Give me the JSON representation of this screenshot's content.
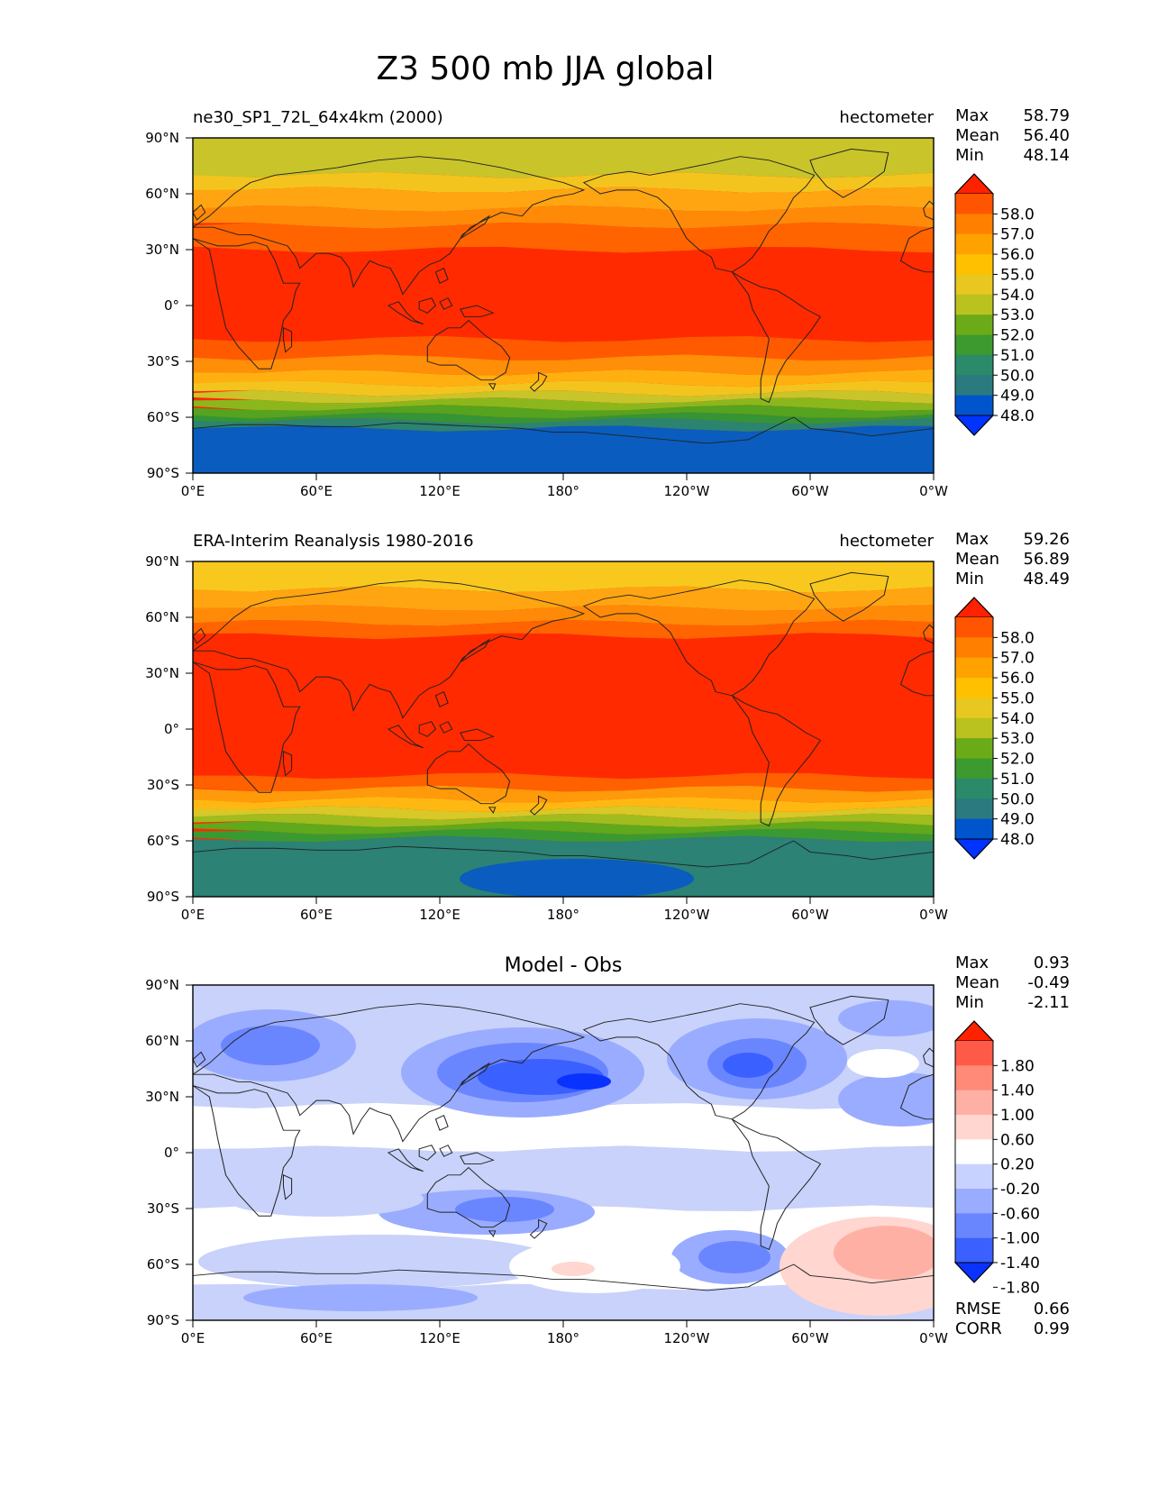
{
  "figure": {
    "title": "Z3 500 mb JJA global"
  },
  "axes": {
    "lat_ticks": [
      "90°N",
      "60°N",
      "30°N",
      "0°",
      "30°S",
      "60°S",
      "90°S"
    ],
    "lon_ticks": [
      "0°E",
      "60°E",
      "120°E",
      "180°",
      "120°W",
      "60°W",
      "0°W"
    ]
  },
  "panels": [
    {
      "id": "model",
      "left_title": "ne30_SP1_72L_64x4km (2000)",
      "right_title": "hectometer",
      "center_title": "",
      "stats": [
        {
          "label": "Max",
          "value": "58.79"
        },
        {
          "label": "Mean",
          "value": "56.40"
        },
        {
          "label": "Min",
          "value": "48.14"
        }
      ],
      "colorbar": {
        "labels": [
          "58.0",
          "57.0",
          "56.0",
          "55.0",
          "54.0",
          "53.0",
          "52.0",
          "51.0",
          "50.0",
          "49.0",
          "48.0"
        ],
        "colors": [
          "#ff2200",
          "#ff5500",
          "#ff8000",
          "#ffa200",
          "#ffc000",
          "#e8c820",
          "#b9c21f",
          "#6cab18",
          "#3c9a2e",
          "#2a8a6a",
          "#2a7a80",
          "#0055cc",
          "#0033ff"
        ]
      },
      "field": {
        "background": "#ff2a00",
        "lat_bands": [
          {
            "lat_top": 90,
            "lat_bottom": 70,
            "color": "#c8c42a"
          },
          {
            "lat_top": 70,
            "lat_bottom": 62,
            "color": "#f4c41e"
          },
          {
            "lat_top": 62,
            "lat_bottom": 52,
            "color": "#ffa512"
          },
          {
            "lat_top": 52,
            "lat_bottom": 43,
            "color": "#ff8a08"
          },
          {
            "lat_top": 43,
            "lat_bottom": 30,
            "color": "#ff6400"
          },
          {
            "lat_top": 30,
            "lat_bottom": -18,
            "color": "#ff2a00"
          },
          {
            "lat_top": -18,
            "lat_bottom": -28,
            "color": "#ff5a00"
          },
          {
            "lat_top": -28,
            "lat_bottom": -36,
            "color": "#ff8e08"
          },
          {
            "lat_top": -36,
            "lat_bottom": -42,
            "color": "#ffb010"
          },
          {
            "lat_top": -42,
            "lat_bottom": -47,
            "color": "#f4c41e"
          },
          {
            "lat_top": -47,
            "lat_bottom": -51,
            "color": "#c8c42a"
          },
          {
            "lat_top": -51,
            "lat_bottom": -55,
            "color": "#8cb71c"
          },
          {
            "lat_top": -55,
            "lat_bottom": -59,
            "color": "#55a31f"
          },
          {
            "lat_top": -59,
            "lat_bottom": -62,
            "color": "#349436"
          },
          {
            "lat_top": -62,
            "lat_bottom": -66,
            "color": "#2a8470"
          },
          {
            "lat_top": -66,
            "lat_bottom": -90,
            "color": "#0a5cbe"
          }
        ]
      }
    },
    {
      "id": "obs",
      "left_title": "ERA-Interim Reanalysis 1980-2016",
      "right_title": "hectometer",
      "center_title": "",
      "stats": [
        {
          "label": "Max",
          "value": "59.26"
        },
        {
          "label": "Mean",
          "value": "56.89"
        },
        {
          "label": "Min",
          "value": "48.49"
        }
      ],
      "colorbar": {
        "labels": [
          "58.0",
          "57.0",
          "56.0",
          "55.0",
          "54.0",
          "53.0",
          "52.0",
          "51.0",
          "50.0",
          "49.0",
          "48.0"
        ],
        "colors": [
          "#ff2200",
          "#ff5500",
          "#ff8000",
          "#ffa200",
          "#ffc000",
          "#e8c820",
          "#b9c21f",
          "#6cab18",
          "#3c9a2e",
          "#2a8a6a",
          "#2a7a80",
          "#0055cc",
          "#0033ff"
        ]
      },
      "field": {
        "background": "#ff2a00",
        "lat_bands": [
          {
            "lat_top": 90,
            "lat_bottom": 75,
            "color": "#f8c81e"
          },
          {
            "lat_top": 75,
            "lat_bottom": 65,
            "color": "#ffa512"
          },
          {
            "lat_top": 65,
            "lat_bottom": 57,
            "color": "#ff8a08"
          },
          {
            "lat_top": 57,
            "lat_bottom": 50,
            "color": "#ff6400"
          },
          {
            "lat_top": 50,
            "lat_bottom": -25,
            "color": "#ff2a00"
          },
          {
            "lat_top": -25,
            "lat_bottom": -32,
            "color": "#ff6000"
          },
          {
            "lat_top": -32,
            "lat_bottom": -38,
            "color": "#ff9a0a"
          },
          {
            "lat_top": -38,
            "lat_bottom": -43,
            "color": "#ffb812"
          },
          {
            "lat_top": -43,
            "lat_bottom": -47,
            "color": "#d8c828"
          },
          {
            "lat_top": -47,
            "lat_bottom": -51,
            "color": "#a0bc1e"
          },
          {
            "lat_top": -51,
            "lat_bottom": -55,
            "color": "#60a81c"
          },
          {
            "lat_top": -55,
            "lat_bottom": -59,
            "color": "#3a9a32"
          },
          {
            "lat_top": -59,
            "lat_bottom": -90,
            "color": "#2b8275"
          }
        ]
      }
    },
    {
      "id": "diff",
      "left_title": "",
      "right_title": "",
      "center_title": "Model - Obs",
      "stats": [
        {
          "label": "Max",
          "value": "0.93"
        },
        {
          "label": "Mean",
          "value": "-0.49"
        },
        {
          "label": "Min",
          "value": "-2.11"
        }
      ],
      "colorbar": {
        "labels": [
          "1.80",
          "1.40",
          "1.00",
          "0.60",
          "0.20",
          "-0.20",
          "-0.60",
          "-1.00",
          "-1.40",
          "-1.80"
        ],
        "colors": [
          "#ff2200",
          "#ff5a48",
          "#ff8a78",
          "#ffb0a4",
          "#ffd6d0",
          "#ffffff",
          "#c8d2ff",
          "#9aacff",
          "#6a86ff",
          "#3a60ff",
          "#0a32ff"
        ]
      },
      "field": {
        "background": "#c8d2fa",
        "lat_bands": [
          {
            "lat_top": 90,
            "lat_bottom": 25,
            "color": "#c8d2fa"
          },
          {
            "lat_top": 25,
            "lat_bottom": 2,
            "color": "#ffffff"
          },
          {
            "lat_top": 2,
            "lat_bottom": -30,
            "color": "#c8d2fa"
          },
          {
            "lat_top": -30,
            "lat_bottom": -72,
            "color": "#ffffff"
          },
          {
            "lat_top": -72,
            "lat_bottom": -90,
            "color": "#c8d2fa"
          }
        ]
      },
      "footer_stats": [
        {
          "label": "RMSE",
          "value": "0.66"
        },
        {
          "label": "CORR",
          "value": "0.99"
        }
      ]
    }
  ]
}
